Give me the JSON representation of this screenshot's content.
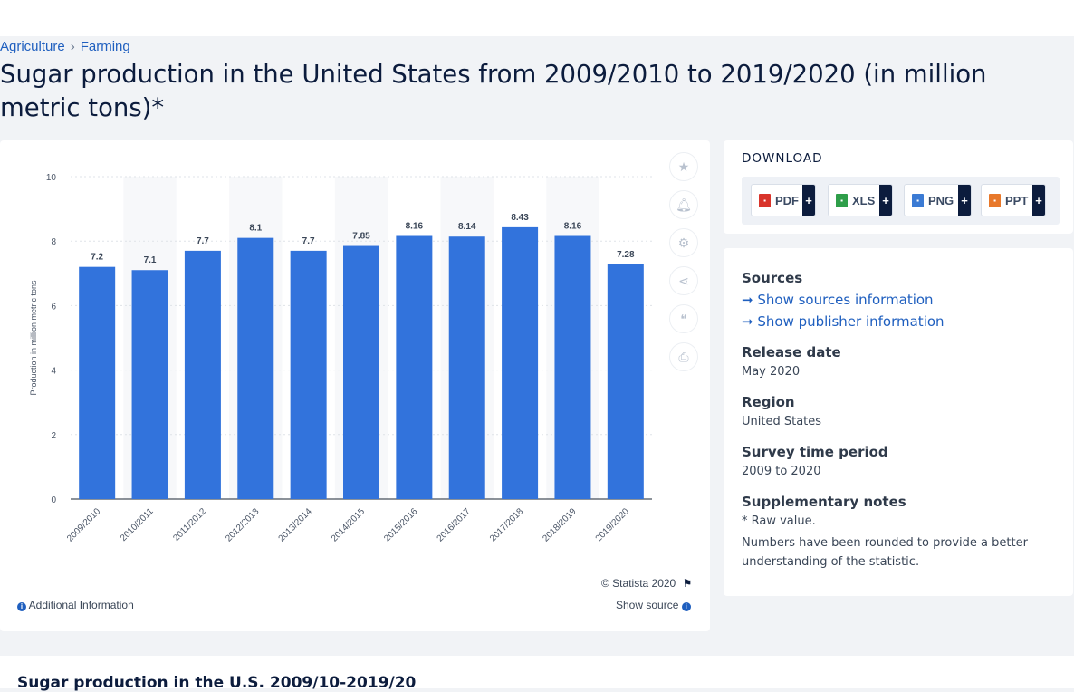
{
  "breadcrumbs": [
    "Agriculture",
    "Farming"
  ],
  "page_title": "Sugar production in the United States from 2009/2010 to 2019/2020 (in million metric tons)*",
  "chart_data": {
    "type": "bar",
    "title": "",
    "xlabel": "",
    "ylabel": "Production in million metric tons",
    "categories": [
      "2009/2010",
      "2010/2011",
      "2011/2012",
      "2012/2013",
      "2013/2014",
      "2014/2015",
      "2015/2016",
      "2016/2017",
      "2017/2018",
      "2018/2019",
      "2019/2020"
    ],
    "values": [
      7.2,
      7.1,
      7.7,
      8.1,
      7.7,
      7.85,
      8.16,
      8.14,
      8.43,
      8.16,
      7.28
    ],
    "value_labels": [
      "7.2",
      "7.1",
      "7.7",
      "8.1",
      "7.7",
      "7.85",
      "8.16",
      "8.14",
      "8.43",
      "8.16",
      "7.28"
    ],
    "ylim": [
      0,
      10
    ],
    "yticks": [
      "0",
      "2",
      "4",
      "6",
      "8",
      "10"
    ],
    "grid": true,
    "bar_color": "#3273dc"
  },
  "chart_footer": {
    "copyright": "© Statista 2020",
    "additional_info": "Additional Information",
    "show_source": "Show source"
  },
  "side_icons": [
    "star-icon",
    "bell-icon",
    "gear-icon",
    "share-icon",
    "quote-icon",
    "print-icon"
  ],
  "download": {
    "title": "DOWNLOAD",
    "buttons": [
      {
        "label": "PDF",
        "color": "#d9342b"
      },
      {
        "label": "XLS",
        "color": "#2e9e49"
      },
      {
        "label": "PNG",
        "color": "#3b7bd4"
      },
      {
        "label": "PPT",
        "color": "#e8782a"
      }
    ],
    "plus": "+"
  },
  "info": {
    "sources_heading": "Sources",
    "show_sources": "Show sources information",
    "show_publisher": "Show publisher information",
    "release_heading": "Release date",
    "release_value": "May 2020",
    "region_heading": "Region",
    "region_value": "United States",
    "survey_heading": "Survey time period",
    "survey_value": "2009 to 2020",
    "supp_heading": "Supplementary notes",
    "supp_line1": "* Raw value.",
    "supp_line2": "Numbers have been rounded to provide a better understanding of the statistic."
  },
  "bottom_title": "Sugar production in the U.S. 2009/10-2019/20"
}
